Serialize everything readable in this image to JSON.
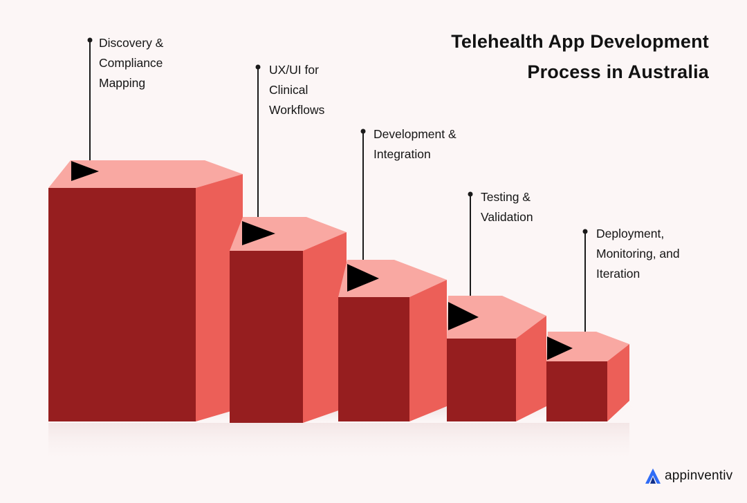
{
  "title": {
    "line1": "Telehealth App Development",
    "line2": "Process in Australia"
  },
  "steps": [
    {
      "lines": [
        "Discovery &",
        "Compliance",
        "Mapping"
      ]
    },
    {
      "lines": [
        "UX/UI for",
        "Clinical",
        "Workflows"
      ]
    },
    {
      "lines": [
        "Development &",
        "Integration"
      ]
    },
    {
      "lines": [
        "Testing &",
        "Validation"
      ]
    },
    {
      "lines": [
        "Deployment,",
        "Monitoring, and",
        "Iteration"
      ]
    }
  ],
  "brand": {
    "name": "appinventiv",
    "logo_icon": "appinventiv-logo-icon"
  },
  "colors": {
    "background": "#fcf6f6",
    "block_front": "#961e1f",
    "block_side": "#ec5f58",
    "block_top": "#f9a8a2",
    "flag": "#000000",
    "logo_blue": "#2f6cf6"
  }
}
